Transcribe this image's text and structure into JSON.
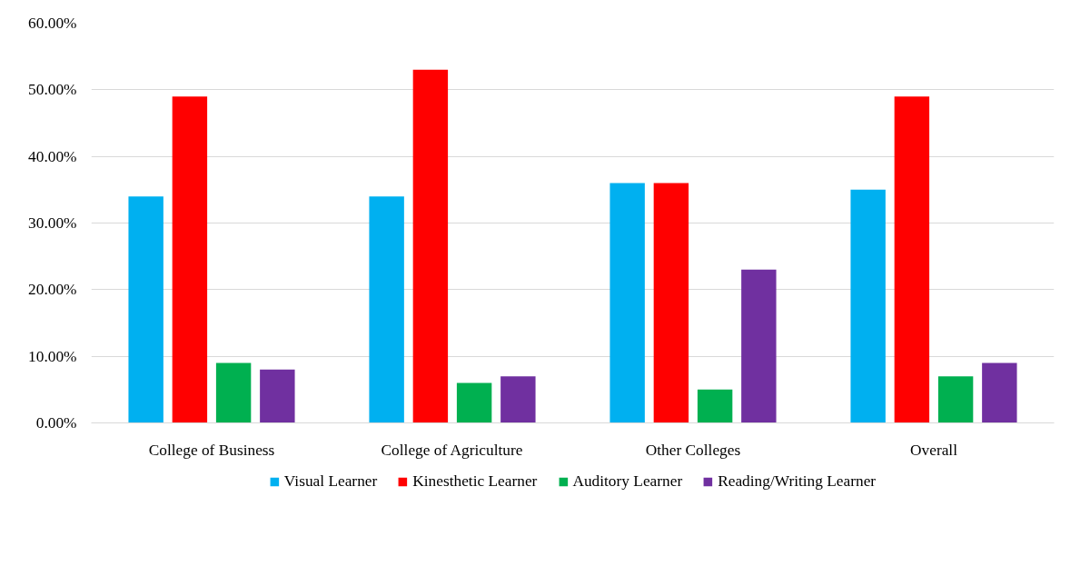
{
  "chart_data": {
    "type": "bar",
    "categories": [
      "College of Business",
      "College of Agriculture",
      "Other Colleges",
      "Overall"
    ],
    "series": [
      {
        "name": "Visual Learner",
        "color": "#00b0f0",
        "values": [
          34,
          34,
          36,
          35
        ]
      },
      {
        "name": "Kinesthetic Learner",
        "color": "#ff0000",
        "values": [
          49,
          53,
          36,
          49
        ]
      },
      {
        "name": "Auditory Learner",
        "color": "#00b050",
        "values": [
          9,
          6,
          5,
          7
        ]
      },
      {
        "name": "Reading/Writing Learner",
        "color": "#7030a0",
        "values": [
          8,
          7,
          23,
          9
        ]
      }
    ],
    "ylim": [
      0,
      60
    ],
    "yticks": [
      {
        "value": 0,
        "label": "0.00%"
      },
      {
        "value": 10,
        "label": "10.00%"
      },
      {
        "value": 20,
        "label": "20.00%"
      },
      {
        "value": 30,
        "label": "30.00%"
      },
      {
        "value": 40,
        "label": "40.00%"
      },
      {
        "value": 50,
        "label": "50.00%"
      },
      {
        "value": 60,
        "label": "60.00%"
      }
    ],
    "grid": "y",
    "legend": "bottom"
  }
}
